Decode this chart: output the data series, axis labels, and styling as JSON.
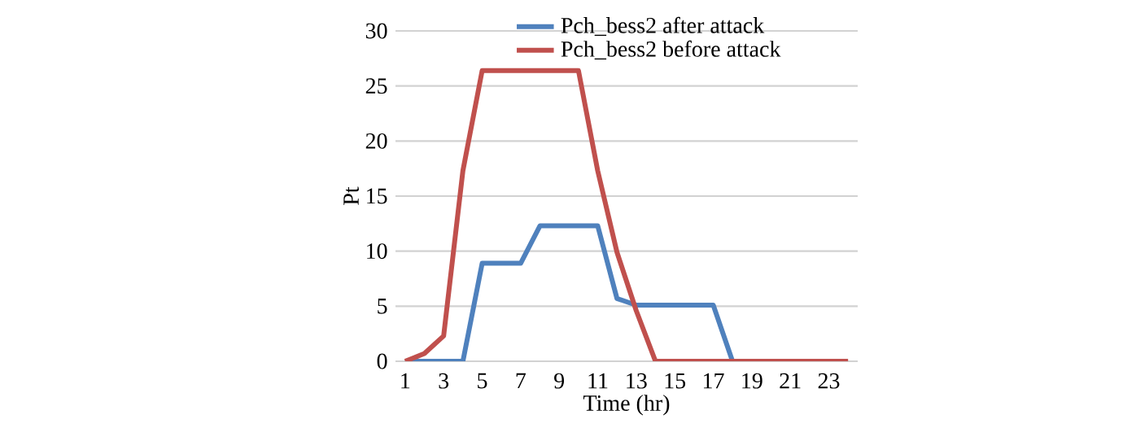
{
  "chart_data": {
    "type": "line",
    "xlabel": "Time  (hr)",
    "ylabel": "Pt",
    "categories": [
      "1",
      null,
      "3",
      null,
      "5",
      null,
      "7",
      null,
      "9",
      null,
      "11",
      null,
      "13",
      null,
      "15",
      null,
      "17",
      null,
      "19",
      null,
      "21",
      null,
      "23",
      null
    ],
    "series": [
      {
        "name": "Pch_bess2 after attack",
        "color": "#4f81bd",
        "values": [
          0,
          0,
          0,
          0,
          8.9,
          8.9,
          8.9,
          12.3,
          12.3,
          12.3,
          12.3,
          5.7,
          5.1,
          5.1,
          5.1,
          5.1,
          5.1,
          0,
          0,
          null,
          null,
          null,
          null,
          null
        ]
      },
      {
        "name": "Pch_bess2 before attack",
        "color": "#c0504d",
        "values": [
          0,
          0.7,
          2.3,
          17.3,
          26.4,
          26.4,
          26.4,
          26.4,
          26.4,
          26.4,
          17.3,
          9.9,
          4.6,
          0,
          0,
          0,
          0,
          0,
          0,
          0,
          0,
          0,
          0,
          0
        ]
      }
    ],
    "ylim": [
      0,
      30
    ],
    "yticks": [
      0,
      5,
      10,
      15,
      20,
      25,
      30
    ],
    "grid": "y",
    "legend": "top",
    "marker": "none",
    "line_style": "solid"
  }
}
